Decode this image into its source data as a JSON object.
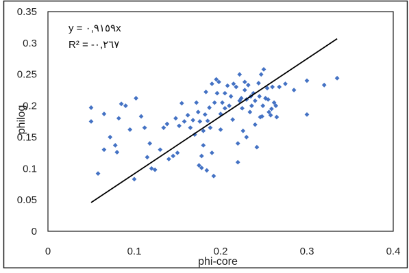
{
  "chart_data": {
    "type": "scatter",
    "title": "",
    "xlabel": "phi-core",
    "ylabel": "philog",
    "xlim": [
      0,
      0.4
    ],
    "ylim": [
      0,
      0.35
    ],
    "x_ticks": [
      "0",
      "0.1",
      "0.2",
      "0.3",
      "0.4"
    ],
    "y_ticks": [
      "0",
      "0.05",
      "0.1",
      "0.15",
      "0.2",
      "0.25",
      "0.3",
      "0.35"
    ],
    "grid": false,
    "legend": "none",
    "trendline": {
      "slope": 0.9159,
      "intercept": 0,
      "x_range": [
        0.05,
        0.335
      ],
      "equation_text": "y = ٠,٩١٥٩x",
      "r2_text": "R² = -٠,٢٦٧"
    },
    "marker_color": "#4472C4",
    "line_color": "#000000",
    "points": [
      [
        0.05,
        0.175
      ],
      [
        0.05,
        0.197
      ],
      [
        0.058,
        0.092
      ],
      [
        0.065,
        0.13
      ],
      [
        0.065,
        0.187
      ],
      [
        0.072,
        0.15
      ],
      [
        0.078,
        0.137
      ],
      [
        0.08,
        0.126
      ],
      [
        0.082,
        0.18
      ],
      [
        0.085,
        0.203
      ],
      [
        0.09,
        0.2
      ],
      [
        0.095,
        0.162
      ],
      [
        0.1,
        0.083
      ],
      [
        0.102,
        0.212
      ],
      [
        0.108,
        0.183
      ],
      [
        0.112,
        0.165
      ],
      [
        0.115,
        0.118
      ],
      [
        0.118,
        0.14
      ],
      [
        0.12,
        0.1
      ],
      [
        0.124,
        0.098
      ],
      [
        0.13,
        0.13
      ],
      [
        0.134,
        0.165
      ],
      [
        0.138,
        0.171
      ],
      [
        0.14,
        0.115
      ],
      [
        0.145,
        0.12
      ],
      [
        0.148,
        0.18
      ],
      [
        0.15,
        0.125
      ],
      [
        0.152,
        0.168
      ],
      [
        0.155,
        0.204
      ],
      [
        0.158,
        0.175
      ],
      [
        0.162,
        0.185
      ],
      [
        0.165,
        0.165
      ],
      [
        0.168,
        0.177
      ],
      [
        0.17,
        0.154
      ],
      [
        0.172,
        0.205
      ],
      [
        0.174,
        0.19
      ],
      [
        0.175,
        0.105
      ],
      [
        0.176,
        0.175
      ],
      [
        0.178,
        0.101
      ],
      [
        0.178,
        0.12
      ],
      [
        0.18,
        0.137
      ],
      [
        0.18,
        0.16
      ],
      [
        0.182,
        0.186
      ],
      [
        0.183,
        0.222
      ],
      [
        0.184,
        0.097
      ],
      [
        0.185,
        0.176
      ],
      [
        0.187,
        0.197
      ],
      [
        0.188,
        0.165
      ],
      [
        0.19,
        0.235
      ],
      [
        0.19,
        0.125
      ],
      [
        0.192,
        0.088
      ],
      [
        0.193,
        0.205
      ],
      [
        0.195,
        0.242
      ],
      [
        0.196,
        0.22
      ],
      [
        0.198,
        0.238
      ],
      [
        0.2,
        0.187
      ],
      [
        0.2,
        0.162
      ],
      [
        0.202,
        0.205
      ],
      [
        0.205,
        0.196
      ],
      [
        0.205,
        0.22
      ],
      [
        0.208,
        0.232
      ],
      [
        0.21,
        0.2
      ],
      [
        0.212,
        0.215
      ],
      [
        0.214,
        0.178
      ],
      [
        0.215,
        0.235
      ],
      [
        0.218,
        0.23
      ],
      [
        0.22,
        0.11
      ],
      [
        0.22,
        0.14
      ],
      [
        0.222,
        0.25
      ],
      [
        0.222,
        0.208
      ],
      [
        0.224,
        0.212
      ],
      [
        0.225,
        0.196
      ],
      [
        0.226,
        0.16
      ],
      [
        0.228,
        0.225
      ],
      [
        0.228,
        0.238
      ],
      [
        0.23,
        0.15
      ],
      [
        0.23,
        0.21
      ],
      [
        0.232,
        0.233
      ],
      [
        0.234,
        0.19
      ],
      [
        0.235,
        0.215
      ],
      [
        0.236,
        0.2
      ],
      [
        0.238,
        0.22
      ],
      [
        0.24,
        0.208
      ],
      [
        0.24,
        0.17
      ],
      [
        0.242,
        0.134
      ],
      [
        0.244,
        0.236
      ],
      [
        0.245,
        0.215
      ],
      [
        0.246,
        0.182
      ],
      [
        0.247,
        0.25
      ],
      [
        0.248,
        0.183
      ],
      [
        0.249,
        0.2
      ],
      [
        0.25,
        0.258
      ],
      [
        0.252,
        0.212
      ],
      [
        0.254,
        0.228
      ],
      [
        0.255,
        0.21
      ],
      [
        0.256,
        0.19
      ],
      [
        0.258,
        0.185
      ],
      [
        0.259,
        0.195
      ],
      [
        0.26,
        0.23
      ],
      [
        0.262,
        0.205
      ],
      [
        0.264,
        0.2
      ],
      [
        0.265,
        0.182
      ],
      [
        0.268,
        0.23
      ],
      [
        0.275,
        0.235
      ],
      [
        0.285,
        0.225
      ],
      [
        0.3,
        0.24
      ],
      [
        0.3,
        0.186
      ],
      [
        0.32,
        0.233
      ],
      [
        0.335,
        0.244
      ]
    ]
  }
}
